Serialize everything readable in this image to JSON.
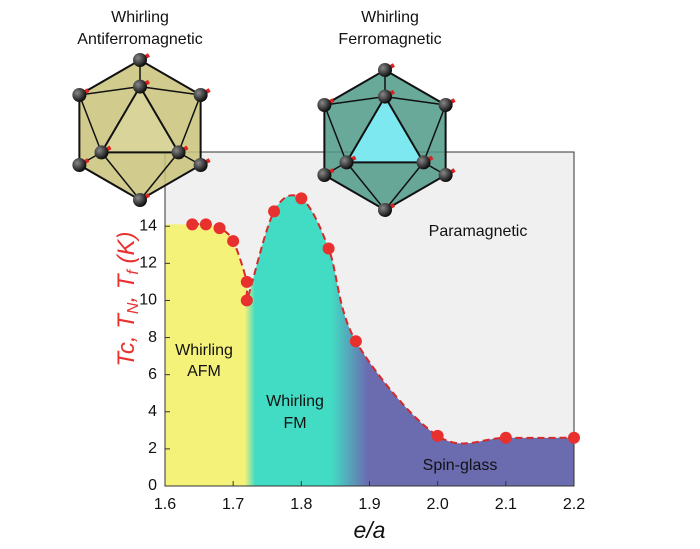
{
  "chart_data": {
    "type": "phase",
    "x": [
      1.64,
      1.66,
      1.68,
      1.7,
      1.72,
      1.72,
      1.76,
      1.8,
      1.84,
      1.88,
      2.0,
      2.1,
      2.2
    ],
    "values": [
      14.1,
      14.1,
      13.9,
      13.2,
      11.0,
      10.0,
      14.8,
      15.5,
      12.8,
      7.8,
      2.7,
      2.6,
      2.6
    ],
    "color": "#e8312f",
    "fill_colors": [
      "#f5f27a",
      "#42dcc4",
      "#6b6bb0"
    ],
    "background": "#f0f0f0",
    "xlim": [
      1.6,
      2.2
    ],
    "xticks": [
      1.6,
      1.7,
      1.8,
      1.9,
      {
        "value": 2.0,
        "label": "2.0"
      },
      2.1,
      2.2
    ],
    "ylim": [
      0,
      18
    ],
    "yticks": [
      0,
      2,
      4,
      6,
      8,
      10,
      12,
      14
    ],
    "x_label": "e/a",
    "y_label_parts": [
      "Tc, T",
      "N",
      ", T",
      "f",
      " (K)"
    ],
    "annotations": [
      "Paramagnetic",
      "Whirling",
      "AFM",
      "Whirling",
      "FM",
      "Spin-glass"
    ],
    "insets": [
      [
        "Whirling",
        "Antiferromagnetic"
      ],
      [
        "Whirling",
        "Ferromagnetic"
      ]
    ]
  }
}
